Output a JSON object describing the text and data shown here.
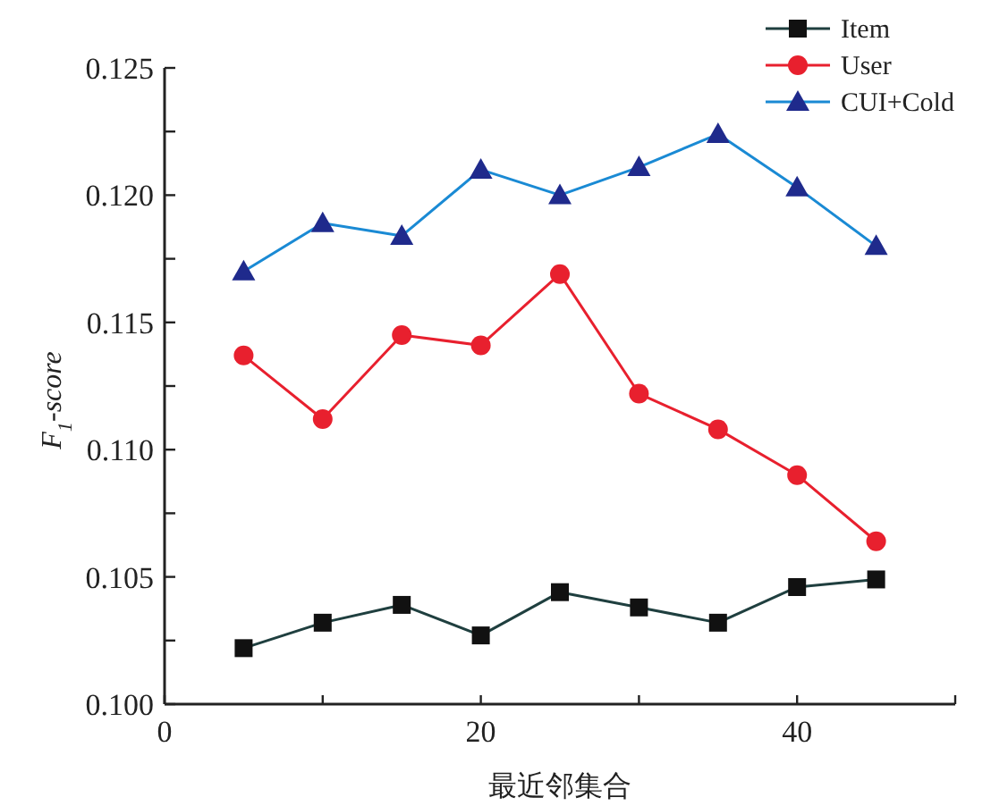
{
  "chart_data": {
    "type": "line",
    "xlabel": "最近邻集合",
    "ylabel": "F$_{1}$-score",
    "x": [
      5,
      10,
      15,
      20,
      25,
      30,
      35,
      40,
      45
    ],
    "series": [
      {
        "name": "Item",
        "color": "#1f3f3f",
        "marker": "square",
        "values": [
          0.1022,
          0.1032,
          0.1039,
          0.1027,
          0.1044,
          0.1038,
          0.1032,
          0.1046,
          0.1049
        ]
      },
      {
        "name": "User",
        "color": "#e8202e",
        "marker": "circle",
        "values": [
          0.1137,
          0.1112,
          0.1145,
          0.1141,
          0.1169,
          0.1122,
          0.1108,
          0.109,
          0.1064
        ]
      },
      {
        "name": "CUI+Cold",
        "color": "#1a8ad4",
        "marker": "triangle",
        "values": [
          0.117,
          0.1189,
          0.1184,
          0.121,
          0.12,
          0.1211,
          0.1224,
          0.1203,
          0.118
        ]
      }
    ],
    "xlim": [
      0,
      50
    ],
    "xticks": [
      0,
      {
        "value": 10,
        "label": null
      },
      20,
      {
        "value": 30,
        "label": null
      },
      40,
      {
        "value": 50,
        "label": null
      }
    ],
    "ylim": [
      0.1,
      0.125
    ],
    "yticks": [
      {
        "value": 0.1,
        "label": "0.100"
      },
      {
        "value": 0.1025,
        "label": null
      },
      {
        "value": 0.105,
        "label": "0.105"
      },
      {
        "value": 0.1075,
        "label": null
      },
      {
        "value": 0.11,
        "label": "0.110"
      },
      {
        "value": 0.1125,
        "label": null
      },
      {
        "value": 0.115,
        "label": "0.115"
      },
      {
        "value": 0.1175,
        "label": null
      },
      {
        "value": 0.12,
        "label": "0.120"
      },
      {
        "value": 0.1225,
        "label": null
      },
      {
        "value": 0.125,
        "label": "0.125"
      }
    ],
    "legend": "top right",
    "grid": false,
    "line_style": "solid"
  }
}
